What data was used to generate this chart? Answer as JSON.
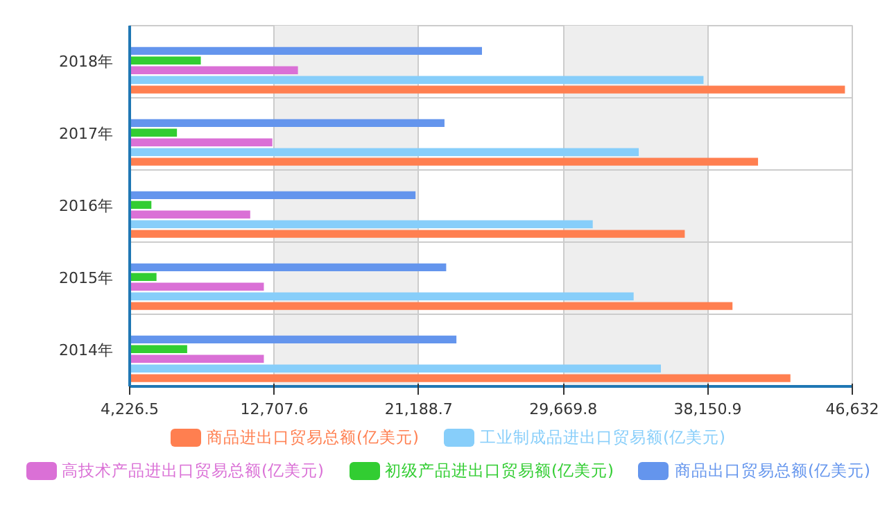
{
  "chart_data": {
    "type": "bar",
    "orientation": "horizontal",
    "categories": [
      "2018年",
      "2017年",
      "2016年",
      "2015年",
      "2014年"
    ],
    "series": [
      {
        "name": "商品进出口贸易总额(亿美元)",
        "color": "#ff7f50",
        "values": [
          46200,
          41100,
          36800,
          39600,
          43000
        ]
      },
      {
        "name": "工业制成品进出口贸易额(亿美元)",
        "color": "#87cefa",
        "values": [
          37900,
          34100,
          31400,
          33800,
          35400
        ]
      },
      {
        "name": "高技术产品进出口贸易总额(亿美元)",
        "color": "#da70d6",
        "values": [
          14100,
          12600,
          11300,
          12100,
          12100
        ]
      },
      {
        "name": "初级产品进出口贸易额(亿美元)",
        "color": "#32cd32",
        "values": [
          8400,
          7000,
          5500,
          5800,
          7600
        ]
      },
      {
        "name": "商品出口贸易总额(亿美元)",
        "color": "#6495ed",
        "values": [
          24900,
          22700,
          21000,
          22800,
          23400
        ]
      }
    ],
    "xlim": [
      4226.5,
      46632
    ],
    "xticks": [
      {
        "value": 4226.5,
        "label": "4,226.5"
      },
      {
        "value": 12707.6,
        "label": "12,707.6"
      },
      {
        "value": 21188.7,
        "label": "21,188.7"
      },
      {
        "value": 29669.8,
        "label": "29,669.8"
      },
      {
        "value": 38150.9,
        "label": "38,150.9"
      },
      {
        "value": 46632,
        "label": "46,632"
      }
    ],
    "grid": true,
    "legend": "bottom"
  }
}
